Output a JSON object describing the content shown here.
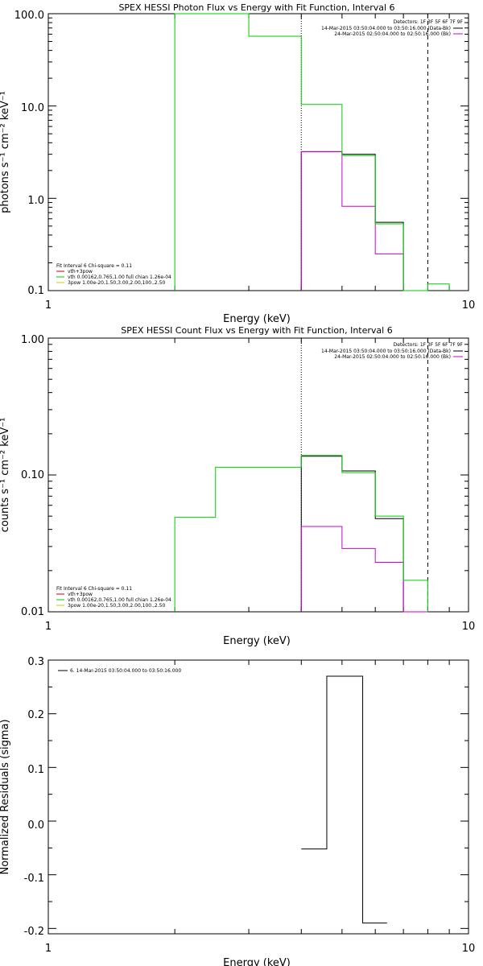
{
  "chart_data": [
    {
      "type": "line",
      "title": "SPEX HESSI Photon Flux vs Energy with Fit Function, Interval 6",
      "xlabel": "Energy (keV)",
      "ylabel": "photons s⁻¹ cm⁻² keV⁻¹",
      "xscale": "log",
      "yscale": "log",
      "xlim": [
        1,
        10
      ],
      "ylim": [
        0.1,
        100
      ],
      "x_ticks": [
        "1",
        "10"
      ],
      "y_ticks": [
        "0.1",
        "1.0",
        "10.0",
        "100.0"
      ],
      "vlines": [
        {
          "x": 4.0,
          "style": "dotted"
        },
        {
          "x": 8.0,
          "style": "dashed"
        }
      ],
      "legend_top": {
        "header": "Detectors: 1F 3F 5F 6F 7F 9F",
        "entries": [
          {
            "label": "14-Mar-2015 03:50:04.000 to 03:50:16.000 (Data-Bk)",
            "color": "#000000"
          },
          {
            "label": "24-Mar-2015 02:50:04.000 to 02:50:16.000 (Bk)",
            "color": "#cc00cc"
          }
        ]
      },
      "legend_bottom": {
        "header": "Fit Interval 6  Chi-square = 0.11",
        "entries": [
          {
            "label": "vth+3pow",
            "color": "#cc0000"
          },
          {
            "label": "vth 0.00162,0.765,1.00  full chian 1.26e-04",
            "color": "#00cc00"
          },
          {
            "label": "3pow 1.00e-20,1.50,3.00,2.00,100.,2.50",
            "color": "#cccc00"
          }
        ]
      },
      "series": [
        {
          "color": "#000000",
          "steps": [
            {
              "x0": 4.0,
              "x1": 5.0,
              "y": 3.2
            },
            {
              "x0": 5.0,
              "x1": 6.0,
              "y": 3.0
            },
            {
              "x0": 6.0,
              "x1": 7.0,
              "y": 0.55
            }
          ]
        },
        {
          "color": "#cc00cc",
          "steps": [
            {
              "x0": 4.0,
              "x1": 5.0,
              "y": 3.2
            },
            {
              "x0": 5.0,
              "x1": 6.0,
              "y": 0.82
            },
            {
              "x0": 6.0,
              "x1": 7.0,
              "y": 0.25
            },
            {
              "x0": 7.0,
              "x1": 8.0,
              "y": 0.1
            }
          ]
        },
        {
          "color": "#00cc00",
          "steps": [
            {
              "x0": 2.0,
              "x1": 3.0,
              "y": 100
            },
            {
              "x0": 3.0,
              "x1": 4.0,
              "y": 57
            },
            {
              "x0": 4.0,
              "x1": 5.0,
              "y": 10.4
            },
            {
              "x0": 5.0,
              "x1": 6.0,
              "y": 2.9
            },
            {
              "x0": 6.0,
              "x1": 7.0,
              "y": 0.53
            },
            {
              "x0": 7.0,
              "x1": 8.0,
              "y": 0.1
            },
            {
              "x0": 8.0,
              "x1": 9.0,
              "y": 0.118
            }
          ]
        }
      ]
    },
    {
      "type": "line",
      "title": "SPEX HESSI Count Flux vs Energy with Fit Function, Interval 6",
      "xlabel": "Energy (keV)",
      "ylabel": "counts s⁻¹ cm⁻² keV⁻¹",
      "xscale": "log",
      "yscale": "log",
      "xlim": [
        1,
        10
      ],
      "ylim": [
        0.01,
        1
      ],
      "x_ticks": [
        "1",
        "10"
      ],
      "y_ticks": [
        "0.01",
        "0.10",
        "1.00"
      ],
      "vlines": [
        {
          "x": 4.0,
          "style": "dotted"
        },
        {
          "x": 8.0,
          "style": "dashed"
        }
      ],
      "legend_top": {
        "header": "Detectors: 1F 3F 5F 6F 7F 9F",
        "entries": [
          {
            "label": "14-Mar-2015 03:50:04.000 to 03:50:16.000 (Data-Bk)",
            "color": "#000000"
          },
          {
            "label": "24-Mar-2015 02:50:04.000 to 02:50:16.000 (Bk)",
            "color": "#cc00cc"
          }
        ]
      },
      "legend_bottom": {
        "header": "Fit Interval 6  Chi-square = 0.11",
        "entries": [
          {
            "label": "vth+3pow",
            "color": "#cc0000"
          },
          {
            "label": "vth 0.00162,0.765,1.00  full chian 1.26e-04",
            "color": "#00cc00"
          },
          {
            "label": "3pow 1.00e-20,1.50,3.00,2.00,100.,2.50",
            "color": "#cccc00"
          }
        ]
      },
      "series": [
        {
          "color": "#000000",
          "steps": [
            {
              "x0": 4.0,
              "x1": 5.0,
              "y": 0.137
            },
            {
              "x0": 5.0,
              "x1": 6.0,
              "y": 0.107
            },
            {
              "x0": 6.0,
              "x1": 7.0,
              "y": 0.048
            }
          ]
        },
        {
          "color": "#cc00cc",
          "steps": [
            {
              "x0": 4.0,
              "x1": 5.0,
              "y": 0.042
            },
            {
              "x0": 5.0,
              "x1": 6.0,
              "y": 0.029
            },
            {
              "x0": 6.0,
              "x1": 7.0,
              "y": 0.023
            },
            {
              "x0": 7.0,
              "x1": 8.0,
              "y": 0.01
            }
          ]
        },
        {
          "color": "#00cc00",
          "steps": [
            {
              "x0": 2.0,
              "x1": 2.5,
              "y": 0.049
            },
            {
              "x0": 2.5,
              "x1": 3.0,
              "y": 0.114
            },
            {
              "x0": 3.0,
              "x1": 4.0,
              "y": 0.114
            },
            {
              "x0": 4.0,
              "x1": 5.0,
              "y": 0.139
            },
            {
              "x0": 5.0,
              "x1": 6.0,
              "y": 0.104
            },
            {
              "x0": 6.0,
              "x1": 7.0,
              "y": 0.05
            },
            {
              "x0": 7.0,
              "x1": 8.0,
              "y": 0.017
            }
          ]
        }
      ]
    },
    {
      "type": "line",
      "title": "",
      "xlabel": "Energy (keV)",
      "ylabel": "Normalized Residuals (sigma)",
      "xscale": "log",
      "yscale": "linear",
      "xlim": [
        1,
        10
      ],
      "ylim": [
        -0.21,
        0.3
      ],
      "x_ticks": [
        "1",
        "10"
      ],
      "y_ticks": [
        "-0.2",
        "-0.1",
        "0.0",
        "0.1",
        "0.2",
        "0.3"
      ],
      "legend_top": {
        "entries": [
          {
            "label": "6. 14-Mar-2015 03:50:04.000 to 03:50:16.000",
            "color": "#000000"
          }
        ]
      },
      "series": [
        {
          "color": "#000000",
          "steps": [
            {
              "x0": 4.0,
              "x1": 4.6,
              "y": -0.052
            },
            {
              "x0": 4.6,
              "x1": 5.6,
              "y": 0.27
            },
            {
              "x0": 5.6,
              "x1": 6.4,
              "y": -0.19
            }
          ]
        }
      ]
    }
  ]
}
